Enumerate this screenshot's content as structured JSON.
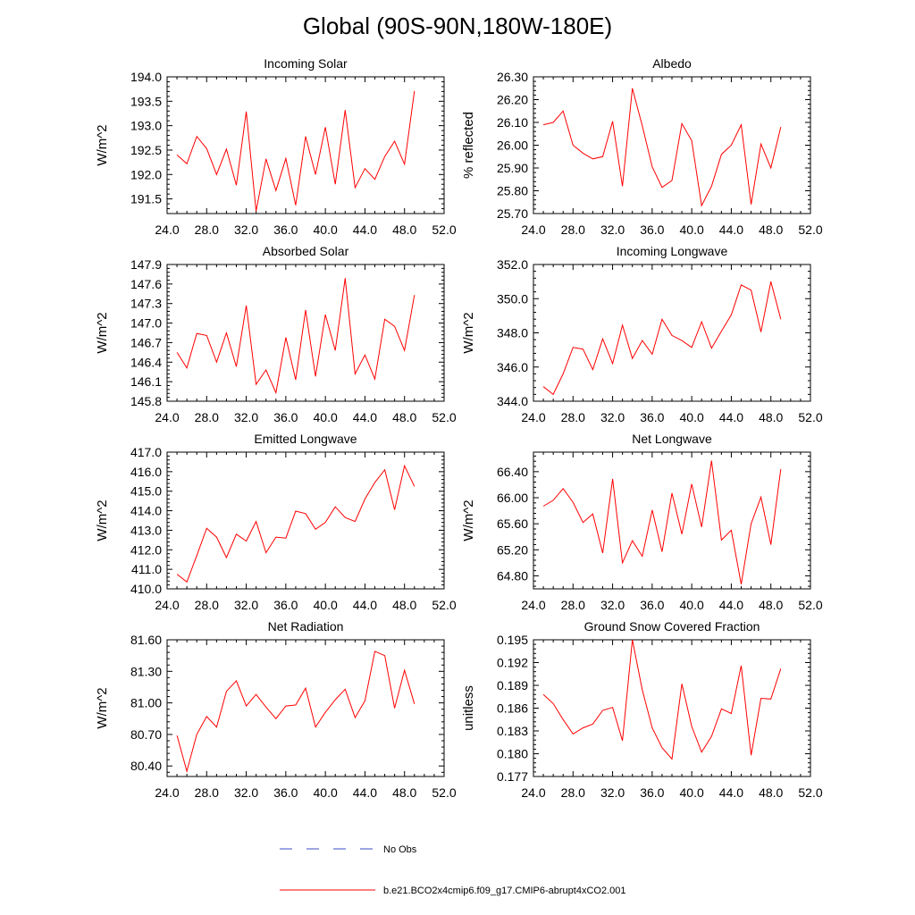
{
  "figure": {
    "title": "Global (90S-90N,180W-180E)"
  },
  "legend": {
    "position": "bottom-center",
    "entries": [
      {
        "label": "No Obs",
        "color": "#3b4bc8",
        "style": "dashed"
      },
      {
        "label": "b.e21.BCO2x4cmip6.f09_g17.CMIP6-abrupt4xCO2.001",
        "color": "#ff0000",
        "style": "solid"
      }
    ]
  },
  "chart_data": [
    {
      "type": "line",
      "title": "Incoming Solar",
      "ylabel": "W/m^2",
      "xlim": [
        24,
        52
      ],
      "ylim": [
        191.2,
        194.0
      ],
      "xticks": [
        "24.0",
        "28.0",
        "32.0",
        "36.0",
        "40.0",
        "44.0",
        "48.0",
        "52.0"
      ],
      "yticks": [
        "191.5",
        "192.0",
        "192.5",
        "193.0",
        "193.5",
        "194.0"
      ],
      "ytick_values": [
        191.5,
        192.0,
        192.5,
        193.0,
        193.5,
        194.0
      ],
      "series": [
        {
          "color": "#ff0000",
          "x": [
            25,
            26,
            27,
            28,
            29,
            30,
            31,
            32,
            33,
            34,
            35,
            36,
            37,
            38,
            39,
            40,
            41,
            42,
            43,
            44,
            45,
            46,
            47,
            48,
            49
          ],
          "values": [
            192.4,
            192.22,
            192.78,
            192.53,
            192.0,
            192.52,
            191.78,
            193.29,
            191.25,
            192.32,
            191.67,
            192.33,
            191.37,
            192.78,
            192.0,
            192.97,
            191.8,
            193.32,
            191.73,
            192.12,
            191.9,
            192.37,
            192.68,
            192.21,
            193.71
          ]
        }
      ]
    },
    {
      "type": "line",
      "title": "Albedo",
      "ylabel": "% reflected",
      "xlim": [
        24,
        52
      ],
      "ylim": [
        25.7,
        26.3
      ],
      "xticks": [
        "24.0",
        "28.0",
        "32.0",
        "36.0",
        "40.0",
        "44.0",
        "48.0",
        "52.0"
      ],
      "yticks": [
        "25.70",
        "25.80",
        "25.90",
        "26.00",
        "26.10",
        "26.20",
        "26.30"
      ],
      "ytick_values": [
        25.7,
        25.8,
        25.9,
        26.0,
        26.1,
        26.2,
        26.3
      ],
      "series": [
        {
          "color": "#ff0000",
          "x": [
            25,
            26,
            27,
            28,
            29,
            30,
            31,
            32,
            33,
            34,
            35,
            36,
            37,
            38,
            39,
            40,
            41,
            42,
            43,
            44,
            45,
            46,
            47,
            48,
            49
          ],
          "values": [
            26.09,
            26.1,
            26.15,
            26.0,
            25.965,
            25.94,
            25.95,
            26.105,
            25.82,
            26.25,
            26.085,
            25.905,
            25.815,
            25.845,
            26.095,
            26.02,
            25.735,
            25.82,
            25.96,
            26.0,
            26.09,
            25.74,
            26.005,
            25.9,
            26.08
          ]
        }
      ]
    },
    {
      "type": "line",
      "title": "Absorbed Solar",
      "ylabel": "W/m^2",
      "xlim": [
        24,
        52
      ],
      "ylim": [
        145.8,
        147.9
      ],
      "xticks": [
        "24.0",
        "28.0",
        "32.0",
        "36.0",
        "40.0",
        "44.0",
        "48.0",
        "52.0"
      ],
      "yticks": [
        "145.8",
        "146.1",
        "146.4",
        "146.7",
        "147.0",
        "147.3",
        "147.6",
        "147.9"
      ],
      "ytick_values": [
        145.8,
        146.1,
        146.4,
        146.7,
        147.0,
        147.3,
        147.6,
        147.9
      ],
      "series": [
        {
          "color": "#ff0000",
          "x": [
            25,
            26,
            27,
            28,
            29,
            30,
            31,
            32,
            33,
            34,
            35,
            36,
            37,
            38,
            39,
            40,
            41,
            42,
            43,
            44,
            45,
            46,
            47,
            48,
            49
          ],
          "values": [
            146.55,
            146.31,
            146.84,
            146.81,
            146.4,
            146.85,
            146.33,
            147.27,
            146.06,
            146.28,
            145.93,
            146.78,
            146.13,
            147.2,
            146.18,
            147.13,
            146.58,
            147.69,
            146.22,
            146.51,
            146.14,
            147.06,
            146.95,
            146.58,
            147.43
          ]
        }
      ]
    },
    {
      "type": "line",
      "title": "Incoming Longwave",
      "ylabel": "W/m^2",
      "xlim": [
        24,
        52
      ],
      "ylim": [
        344.0,
        352.0
      ],
      "xticks": [
        "24.0",
        "28.0",
        "32.0",
        "36.0",
        "40.0",
        "44.0",
        "48.0",
        "52.0"
      ],
      "yticks": [
        "344.0",
        "346.0",
        "348.0",
        "350.0",
        "352.0"
      ],
      "ytick_values": [
        344.0,
        346.0,
        348.0,
        350.0,
        352.0
      ],
      "series": [
        {
          "color": "#ff0000",
          "x": [
            25,
            26,
            27,
            28,
            29,
            30,
            31,
            32,
            33,
            34,
            35,
            36,
            37,
            38,
            39,
            40,
            41,
            42,
            43,
            44,
            45,
            46,
            47,
            48,
            49
          ],
          "values": [
            344.85,
            344.4,
            345.6,
            347.15,
            347.05,
            345.85,
            347.65,
            346.2,
            348.45,
            346.5,
            347.55,
            346.75,
            348.8,
            347.85,
            347.55,
            347.15,
            348.65,
            347.1,
            348.1,
            349.05,
            350.8,
            350.5,
            348.05,
            351.0,
            348.8
          ]
        }
      ]
    },
    {
      "type": "line",
      "title": "Emitted Longwave",
      "ylabel": "W/m^2",
      "xlim": [
        24,
        52
      ],
      "ylim": [
        410.0,
        417.0
      ],
      "xticks": [
        "24.0",
        "28.0",
        "32.0",
        "36.0",
        "40.0",
        "44.0",
        "48.0",
        "52.0"
      ],
      "yticks": [
        "410.0",
        "411.0",
        "412.0",
        "413.0",
        "414.0",
        "415.0",
        "416.0",
        "417.0"
      ],
      "ytick_values": [
        410.0,
        411.0,
        412.0,
        413.0,
        414.0,
        415.0,
        416.0,
        417.0
      ],
      "series": [
        {
          "color": "#ff0000",
          "x": [
            25,
            26,
            27,
            28,
            29,
            30,
            31,
            32,
            33,
            34,
            35,
            36,
            37,
            38,
            39,
            40,
            41,
            42,
            43,
            44,
            45,
            46,
            47,
            48,
            49
          ],
          "values": [
            410.75,
            410.35,
            411.7,
            413.1,
            412.65,
            411.6,
            412.8,
            412.45,
            413.45,
            411.85,
            412.65,
            412.6,
            413.98,
            413.85,
            413.05,
            413.4,
            414.2,
            413.65,
            413.45,
            414.6,
            415.45,
            416.1,
            414.05,
            416.3,
            415.25
          ]
        }
      ]
    },
    {
      "type": "line",
      "title": "Net Longwave",
      "ylabel": "W/m^2",
      "xlim": [
        24,
        52
      ],
      "ylim": [
        64.6,
        66.7
      ],
      "xticks": [
        "24.0",
        "28.0",
        "32.0",
        "36.0",
        "40.0",
        "44.0",
        "48.0",
        "52.0"
      ],
      "yticks": [
        "64.80",
        "65.20",
        "65.60",
        "66.00",
        "66.40"
      ],
      "ytick_values": [
        64.8,
        65.2,
        65.6,
        66.0,
        66.4
      ],
      "series": [
        {
          "color": "#ff0000",
          "x": [
            25,
            26,
            27,
            28,
            29,
            30,
            31,
            32,
            33,
            34,
            35,
            36,
            37,
            38,
            39,
            40,
            41,
            42,
            43,
            44,
            45,
            46,
            47,
            48,
            49
          ],
          "values": [
            65.87,
            65.96,
            66.14,
            65.93,
            65.62,
            65.75,
            65.15,
            66.29,
            65.0,
            65.34,
            65.1,
            65.81,
            65.17,
            66.07,
            65.44,
            66.21,
            65.55,
            66.57,
            65.35,
            65.5,
            64.67,
            65.6,
            66.01,
            65.28,
            66.44
          ]
        }
      ]
    },
    {
      "type": "line",
      "title": "Net Radiation",
      "ylabel": "W/m^2",
      "xlim": [
        24,
        52
      ],
      "ylim": [
        80.3,
        81.6
      ],
      "xticks": [
        "24.0",
        "28.0",
        "32.0",
        "36.0",
        "40.0",
        "44.0",
        "48.0",
        "52.0"
      ],
      "yticks": [
        "80.40",
        "80.70",
        "81.00",
        "81.30",
        "81.60"
      ],
      "ytick_values": [
        80.4,
        80.7,
        81.0,
        81.3,
        81.6
      ],
      "series": [
        {
          "color": "#ff0000",
          "x": [
            25,
            26,
            27,
            28,
            29,
            30,
            31,
            32,
            33,
            34,
            35,
            36,
            37,
            38,
            39,
            40,
            41,
            42,
            43,
            44,
            45,
            46,
            47,
            48,
            49
          ],
          "values": [
            80.69,
            80.35,
            80.7,
            80.87,
            80.77,
            81.11,
            81.21,
            80.97,
            81.08,
            80.96,
            80.85,
            80.97,
            80.98,
            81.14,
            80.77,
            80.91,
            81.03,
            81.13,
            80.86,
            81.02,
            81.49,
            81.45,
            80.95,
            81.31,
            80.99
          ]
        }
      ]
    },
    {
      "type": "line",
      "title": "Ground Snow Covered Fraction",
      "ylabel": "unitless",
      "xlim": [
        24,
        52
      ],
      "ylim": [
        0.177,
        0.195
      ],
      "xticks": [
        "24.0",
        "28.0",
        "32.0",
        "36.0",
        "40.0",
        "44.0",
        "48.0",
        "52.0"
      ],
      "yticks": [
        "0.177",
        "0.180",
        "0.183",
        "0.186",
        "0.189",
        "0.192",
        "0.195"
      ],
      "ytick_values": [
        0.177,
        0.18,
        0.183,
        0.186,
        0.189,
        0.192,
        0.195
      ],
      "series": [
        {
          "color": "#ff0000",
          "x": [
            25,
            26,
            27,
            28,
            29,
            30,
            31,
            32,
            33,
            34,
            35,
            36,
            37,
            38,
            39,
            40,
            41,
            42,
            43,
            44,
            45,
            46,
            47,
            48,
            49
          ],
          "values": [
            0.1878,
            0.1866,
            0.1845,
            0.1826,
            0.1834,
            0.1839,
            0.1857,
            0.1861,
            0.1817,
            0.195,
            0.1884,
            0.1834,
            0.1808,
            0.1793,
            0.1892,
            0.1836,
            0.1802,
            0.1823,
            0.1859,
            0.1853,
            0.1916,
            0.1798,
            0.1873,
            0.1872,
            0.1912
          ]
        }
      ]
    }
  ]
}
